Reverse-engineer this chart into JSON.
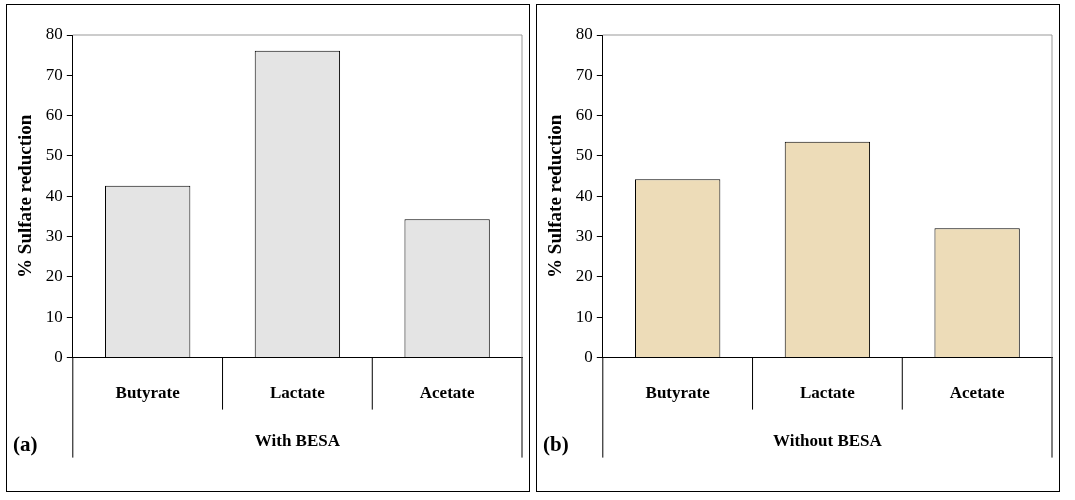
{
  "chart_data": [
    {
      "type": "bar",
      "categories": [
        "Butyrate",
        "Lactate",
        "Acetate"
      ],
      "values": [
        42.6,
        76.1,
        34.3
      ],
      "color": "#e4e4e4",
      "xlabel": "With BESA",
      "ylabel": "% Sulfate reduction",
      "ylim": [
        0,
        80
      ],
      "yticks": [
        0,
        10,
        20,
        30,
        40,
        50,
        60,
        70,
        80
      ],
      "annotations": [
        "(a)"
      ]
    },
    {
      "type": "bar",
      "categories": [
        "Butyrate",
        "Lactate",
        "Acetate"
      ],
      "values": [
        44.2,
        53.5,
        32.1
      ],
      "color": "#eddcb8",
      "xlabel": "Without BESA",
      "ylabel": "% Sulfate reduction",
      "ylim": [
        0,
        80
      ],
      "yticks": [
        0,
        10,
        20,
        30,
        40,
        50,
        60,
        70,
        80
      ],
      "annotations": [
        "(b)"
      ]
    }
  ]
}
